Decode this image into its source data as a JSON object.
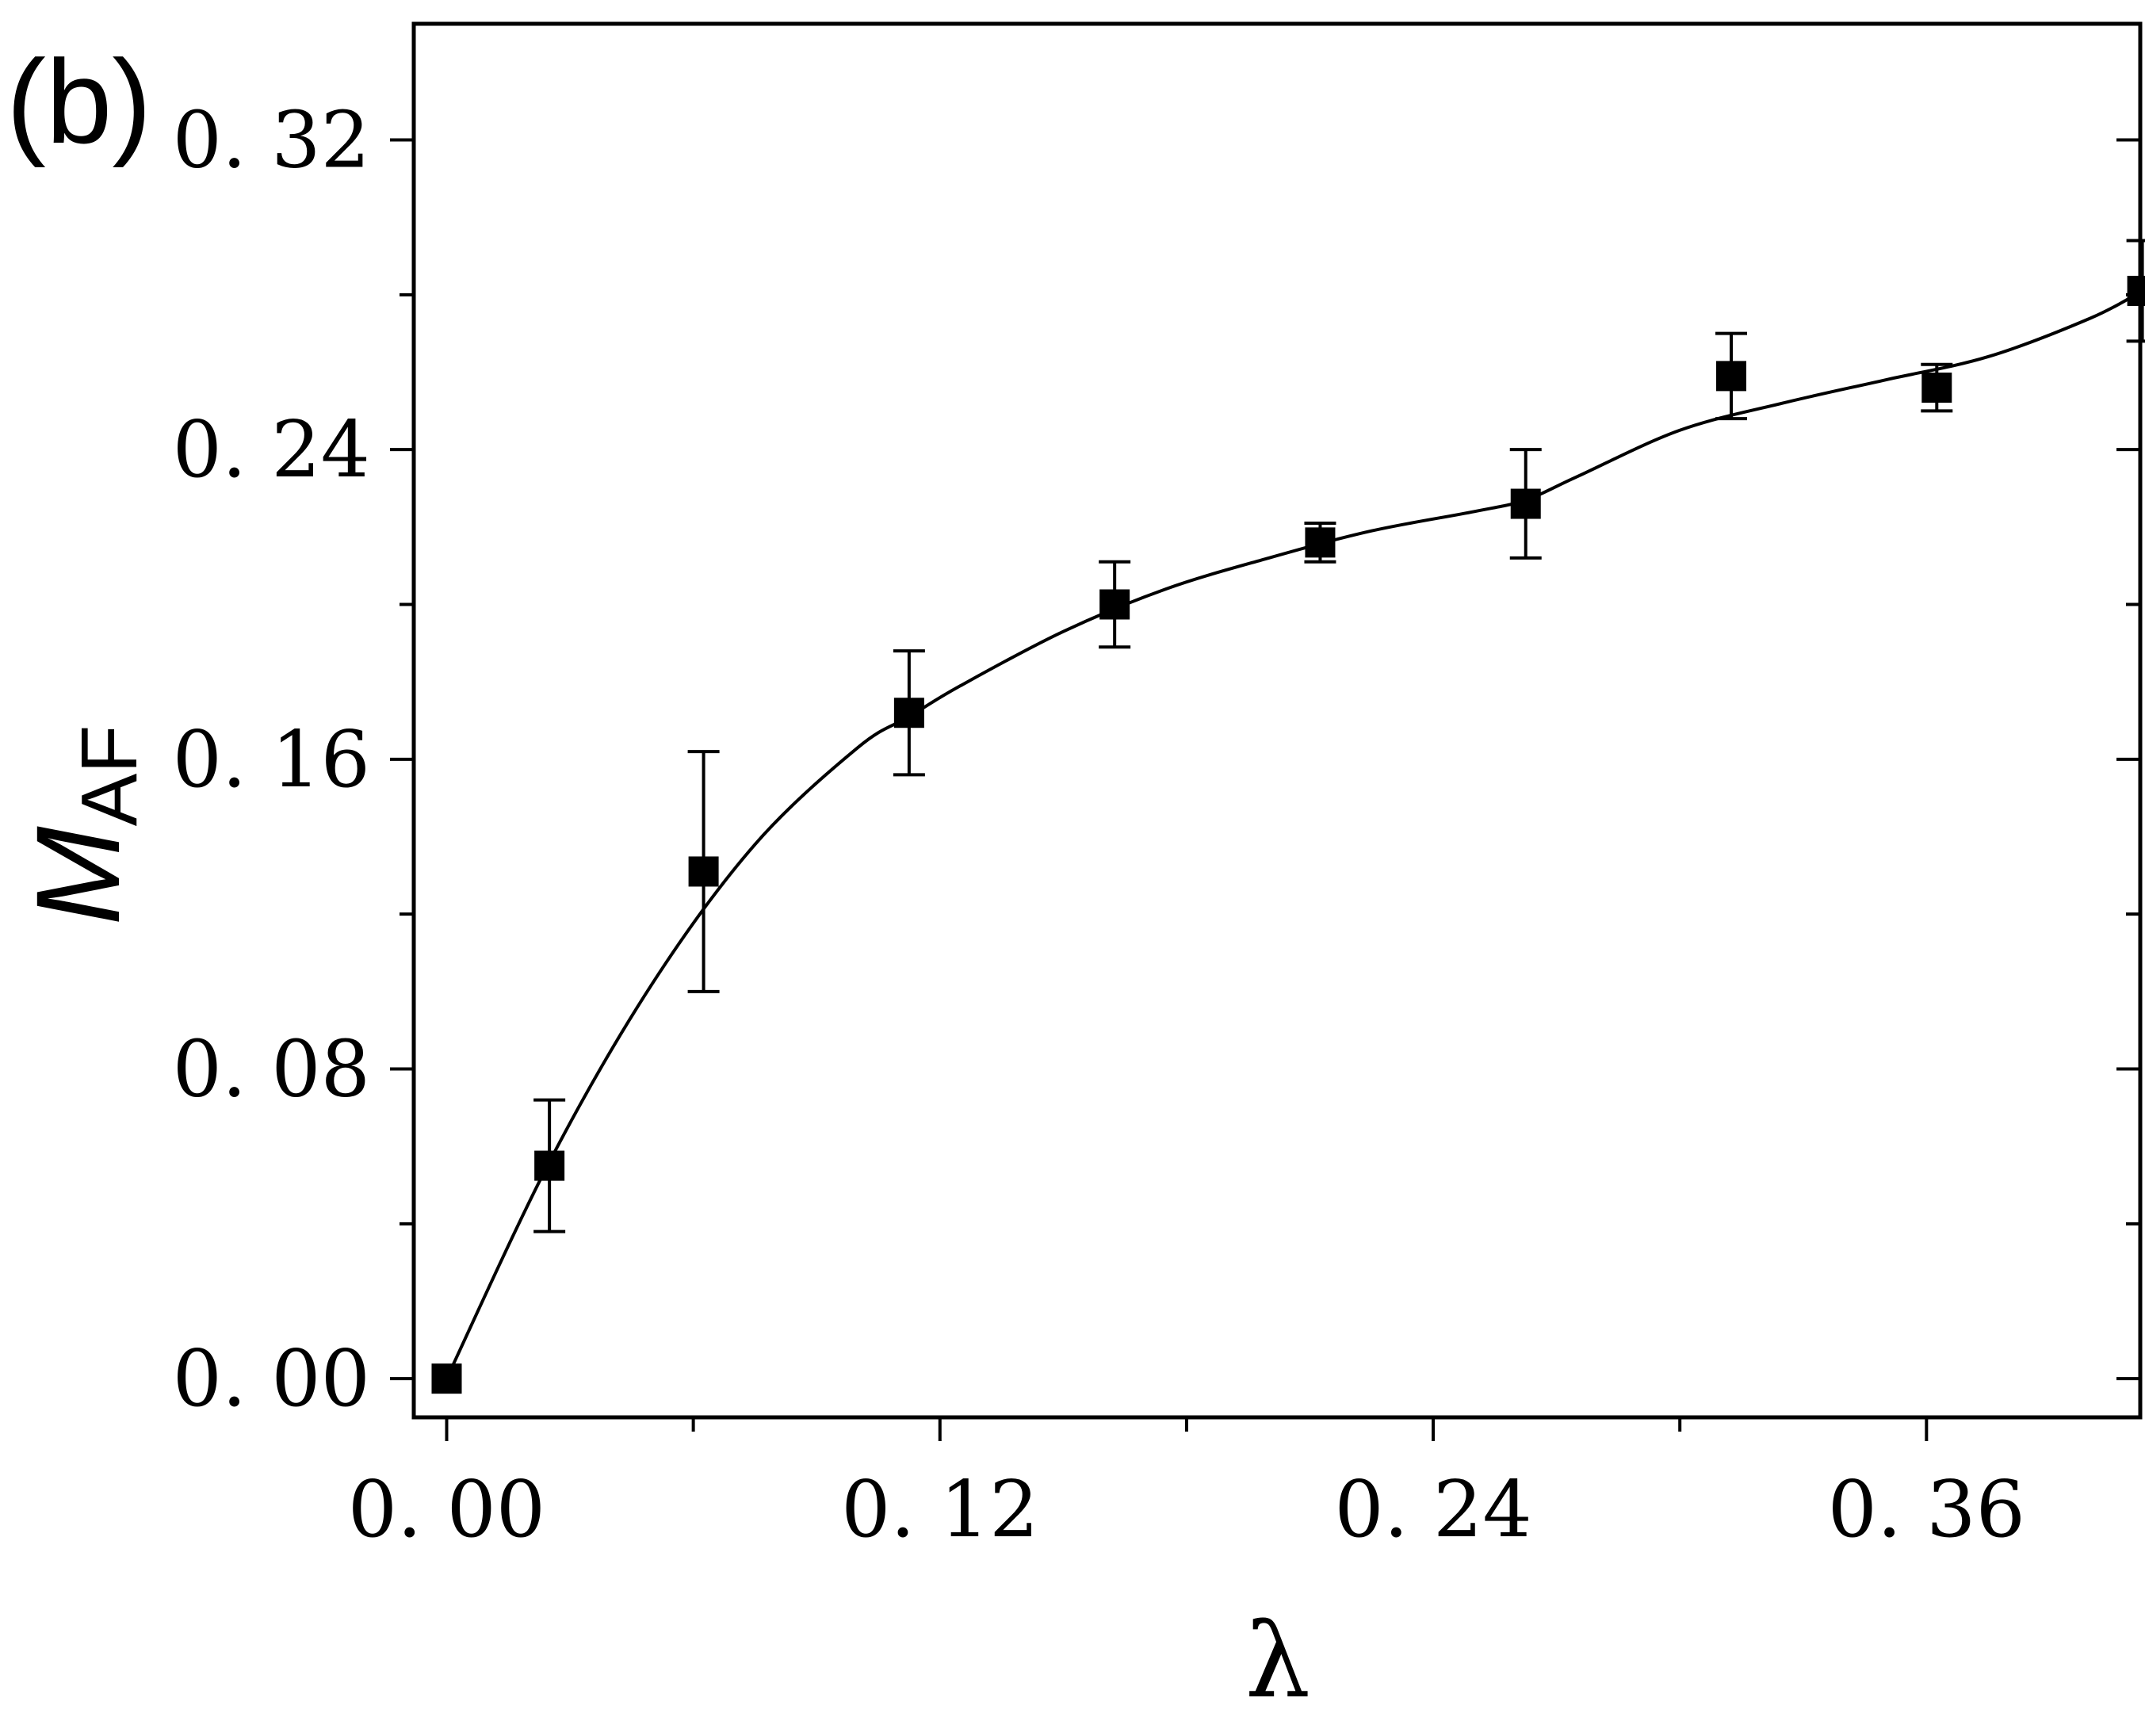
{
  "chart_data": {
    "type": "scatter",
    "panel_label": "(b)",
    "xlabel": "λ",
    "ylabel": {
      "main": "M",
      "subscript": "AF"
    },
    "xlim": [
      -0.008,
      0.412
    ],
    "ylim": [
      -0.01,
      0.35
    ],
    "xticks": [
      0.0,
      0.12,
      0.24,
      0.36
    ],
    "xtick_labels": [
      "0. 00",
      "0. 12",
      "0. 24",
      "0. 36"
    ],
    "xminor": [
      0.06,
      0.18,
      0.3
    ],
    "yticks": [
      0.0,
      0.08,
      0.16,
      0.24,
      0.32
    ],
    "ytick_labels": [
      "0. 00",
      "0. 08",
      "0. 16",
      "0. 24",
      "0. 32"
    ],
    "yminor": [
      0.04,
      0.12,
      0.2,
      0.28
    ],
    "grid": false,
    "legend": "none",
    "series": [
      {
        "marker": "square",
        "color": "#000000",
        "x": [
          0.0,
          0.025,
          0.0625,
          0.1125,
          0.1625,
          0.2125,
          0.2625,
          0.3125,
          0.3625,
          0.4125
        ],
        "y": [
          0.0,
          0.055,
          0.131,
          0.172,
          0.2,
          0.216,
          0.226,
          0.259,
          0.256,
          0.281
        ],
        "yerr": [
          0.0,
          0.017,
          0.031,
          0.016,
          0.011,
          0.005,
          0.014,
          0.011,
          0.006,
          0.013
        ]
      },
      {
        "style": "line",
        "color": "#000000",
        "x": [
          0.0,
          0.025,
          0.05,
          0.075,
          0.1,
          0.1125,
          0.125,
          0.15,
          0.175,
          0.2,
          0.225,
          0.25,
          0.2625,
          0.275,
          0.3,
          0.325,
          0.35,
          0.375,
          0.4,
          0.4125
        ],
        "y": [
          0.0,
          0.056,
          0.102,
          0.138,
          0.163,
          0.171,
          0.179,
          0.193,
          0.204,
          0.212,
          0.219,
          0.224,
          0.227,
          0.233,
          0.245,
          0.252,
          0.258,
          0.264,
          0.274,
          0.281
        ]
      }
    ]
  }
}
